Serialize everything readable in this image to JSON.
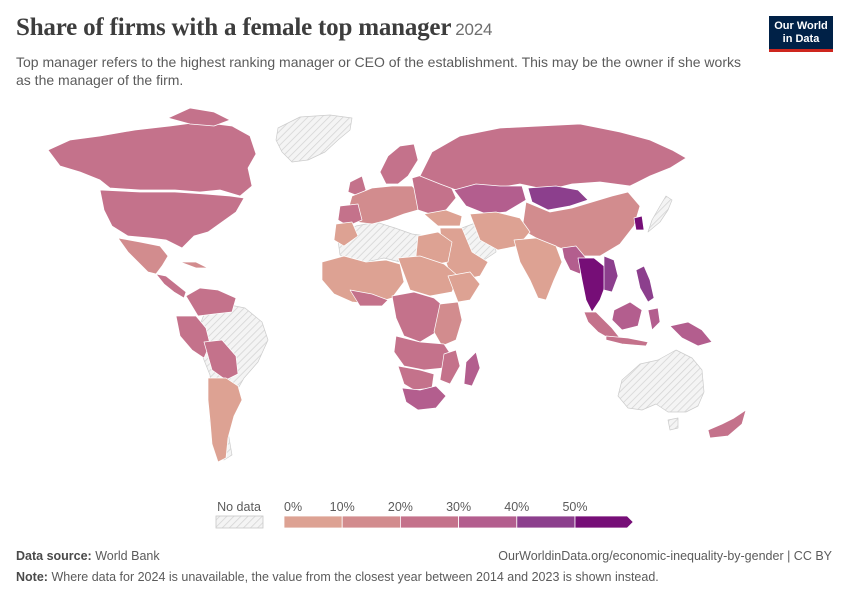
{
  "header": {
    "title": "Share of firms with a female top manager",
    "year": "2024",
    "subtitle": "Top manager refers to the highest ranking manager or CEO of the establishment. This may be the owner if she works as the manager of the firm.",
    "logo_line1": "Our World",
    "logo_line2": "in Data"
  },
  "legend": {
    "no_data_label": "No data",
    "bins": [
      {
        "label": "0%",
        "color": "#dda293"
      },
      {
        "label": "10%",
        "color": "#d28c8e"
      },
      {
        "label": "20%",
        "color": "#c4728b"
      },
      {
        "label": "30%",
        "color": "#b35e8e"
      },
      {
        "label": "40%",
        "color": "#8c3f8d"
      },
      {
        "label": "50%",
        "color": "#760e77"
      }
    ]
  },
  "colors": {
    "no_data_hatch": "#d5d5d5",
    "border": "#ffffff"
  },
  "footer": {
    "source_label": "Data source:",
    "source_value": "World Bank",
    "url": "OurWorldinData.org/economic-inequality-by-gender | CC BY",
    "note_label": "Note:",
    "note_value": "Where data for 2024 is unavailable, the value from the closest year between 2014 and 2023 is shown instead."
  }
}
